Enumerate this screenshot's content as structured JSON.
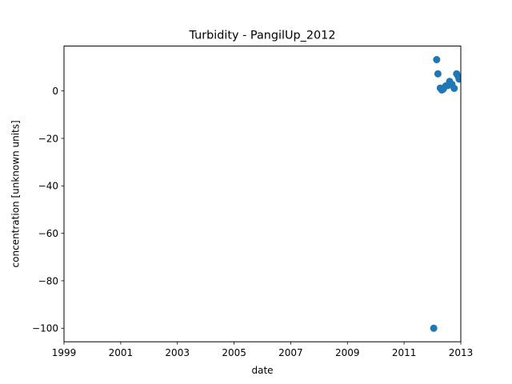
{
  "chart_data": {
    "type": "scatter",
    "title": "Turbidity - PangilUp_2012",
    "xlabel": "date",
    "ylabel": "concentration [unknown units]",
    "xlim": [
      "1999-01-01",
      "2013-01-01"
    ],
    "ylim": [
      -105.7,
      18.9
    ],
    "xticks": [
      {
        "value": "1999-01-01",
        "label": "1999"
      },
      {
        "value": "2001-01-01",
        "label": "2001"
      },
      {
        "value": "2003-01-01",
        "label": "2003"
      },
      {
        "value": "2005-01-01",
        "label": "2005"
      },
      {
        "value": "2007-01-01",
        "label": "2007"
      },
      {
        "value": "2009-01-01",
        "label": "2009"
      },
      {
        "value": "2011-01-01",
        "label": "2011"
      },
      {
        "value": "2013-01-01",
        "label": "2013"
      }
    ],
    "yticks": [
      {
        "value": 0,
        "label": "0"
      },
      {
        "value": -20,
        "label": "−20"
      },
      {
        "value": -40,
        "label": "−40"
      },
      {
        "value": -60,
        "label": "−60"
      },
      {
        "value": -80,
        "label": "−80"
      },
      {
        "value": -100,
        "label": "−100"
      }
    ],
    "grid": false,
    "series": [
      {
        "color": "#1f77b4",
        "points": [
          {
            "x": "2012-01-18",
            "y": -100
          },
          {
            "x": "2012-02-25",
            "y": 13.2
          },
          {
            "x": "2012-03-12",
            "y": 7.2
          },
          {
            "x": "2012-04-12",
            "y": 1.2
          },
          {
            "x": "2012-05-01",
            "y": 0.4
          },
          {
            "x": "2012-05-20",
            "y": 0.8
          },
          {
            "x": "2012-06-21",
            "y": 2.1
          },
          {
            "x": "2012-07-20",
            "y": 2.3
          },
          {
            "x": "2012-08-10",
            "y": 4.0
          },
          {
            "x": "2012-09-08",
            "y": 2.8
          },
          {
            "x": "2012-10-08",
            "y": 1.1
          },
          {
            "x": "2012-11-08",
            "y": 7.2
          },
          {
            "x": "2012-11-30",
            "y": 6.0
          },
          {
            "x": "2012-12-10",
            "y": 5.0
          }
        ]
      }
    ]
  }
}
